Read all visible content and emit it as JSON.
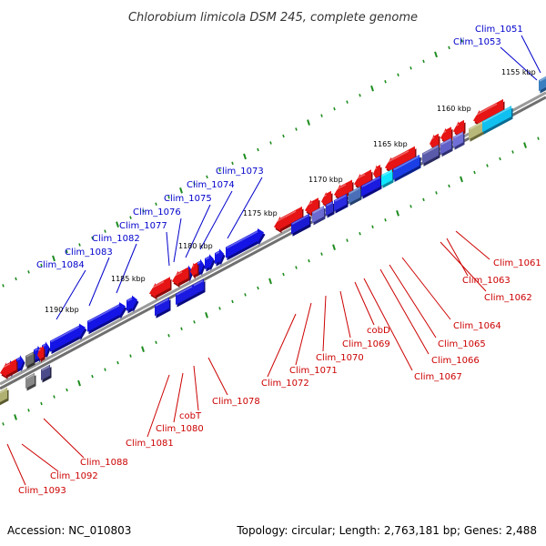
{
  "title": "Chlorobium limicola DSM 245, complete genome",
  "colors": {
    "forward_gene": "#0000ee",
    "reverse_gene": "#ee0000",
    "forward_label": "#0000cc",
    "reverse_label": "#cc0000",
    "backbone": "#888888",
    "tick": "#1e8c1e"
  },
  "footer": {
    "accession_label": "Accession:",
    "accession": "NC_010803",
    "topology_label": "Topology:",
    "topology": "circular",
    "length_label": "Length:",
    "length": "2,763,181 bp",
    "genes_label": "Genes:",
    "genes": "2,488"
  },
  "kbp_ticks": [
    "1155 kbp",
    "1160 kbp",
    "1165 kbp",
    "1170 kbp",
    "1175 kbp",
    "1180 kbp",
    "1185 kbp",
    "1190 kbp"
  ],
  "forward_gene_labels": [
    "Clim_1051",
    "Clim_1053",
    "Clim_1073",
    "Clim_1074",
    "Clim_1075",
    "Clim_1076",
    "Clim_1077",
    "Clim_1082",
    "Clim_1083",
    "Clim_1084"
  ],
  "reverse_gene_labels": [
    "Clim_1061",
    "Clim_1063",
    "Clim_1062",
    "Clim_1064",
    "Clim_1065",
    "Clim_1066",
    "Clim_1067",
    "cobD",
    "Clim_1069",
    "Clim_1070",
    "Clim_1071",
    "Clim_1072",
    "Clim_1078",
    "cobT",
    "Clim_1080",
    "Clim_1081",
    "Clim_1088",
    "Clim_1092",
    "Clim_1093"
  ]
}
